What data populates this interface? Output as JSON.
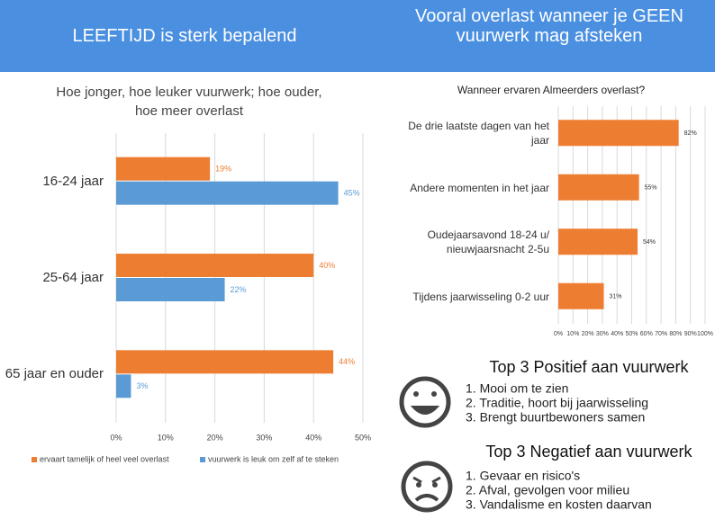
{
  "headers": [
    "LEEFTIJD is sterk bepalend",
    "Vooral overlast wanneer je GEEN vuurwerk mag afsteken"
  ],
  "chart_data": [
    {
      "type": "hbar",
      "title": "Hoe jonger, hoe leuker vuurwerk; hoe ouder, hoe meer overlast",
      "categories": [
        "16-24 jaar",
        "25-64 jaar",
        "65 jaar en ouder"
      ],
      "series": [
        {
          "name": "ervaart tamelijk of heel veel overlast",
          "color": "#ed7d31",
          "values": [
            19,
            40,
            44
          ],
          "value_labels": [
            "19%",
            "40%",
            "44%"
          ]
        },
        {
          "name": "vuurwerk is leuk om zelf af te steken",
          "color": "#5b9bd5",
          "values": [
            45,
            22,
            3
          ],
          "value_labels": [
            "45%",
            "22%",
            "3%"
          ]
        }
      ],
      "xlim": [
        0,
        50
      ],
      "xticks": [
        {
          "value": 0,
          "label": "0%"
        },
        {
          "value": 10,
          "label": "10%"
        },
        {
          "value": 20,
          "label": "20%"
        },
        {
          "value": 30,
          "label": "30%"
        },
        {
          "value": 40,
          "label": "40%"
        },
        {
          "value": 50,
          "label": "50%"
        }
      ],
      "grid": true,
      "legend": "bottom"
    },
    {
      "type": "hbar",
      "title": "Wanneer ervaren Almeerders overlast?",
      "categories": [
        "De drie laatste dagen van het jaar",
        "Andere momenten in het jaar",
        "Oudejaarsavond 18-24 u/ nieuwjaarsnacht 2-5u",
        "Tijdens jaarwisseling 0-2 uur"
      ],
      "series": [
        {
          "color": "#ed7d31",
          "values": [
            82,
            55,
            54,
            31
          ],
          "value_labels": [
            "82%",
            "55%",
            "54%",
            "31%"
          ]
        }
      ],
      "xlim": [
        0,
        100
      ],
      "xticks": [
        {
          "value": 0,
          "label": "0%"
        },
        {
          "value": 10,
          "label": "10%"
        },
        {
          "value": 20,
          "label": "20%"
        },
        {
          "value": 30,
          "label": "30%"
        },
        {
          "value": 40,
          "label": "40%"
        },
        {
          "value": 50,
          "label": "50%"
        },
        {
          "value": 60,
          "label": "60%"
        },
        {
          "value": 70,
          "label": "70%"
        },
        {
          "value": 80,
          "label": "80%"
        },
        {
          "value": 90,
          "label": "90%"
        },
        {
          "value": 100,
          "label": "100%"
        }
      ],
      "grid": true
    }
  ],
  "top_lists": [
    {
      "title": "Top 3 Positief aan vuurwerk",
      "items": [
        "1. Mooi om te zien",
        "2. Traditie, hoort bij jaarwisseling",
        "3. Brengt buurtbewoners samen"
      ]
    },
    {
      "title": "Top 3 Negatief aan vuurwerk",
      "items": [
        "1. Gevaar en risico's",
        "2. Afval, gevolgen voor milieu",
        "3. Vandalisme en kosten daarvan"
      ]
    }
  ]
}
